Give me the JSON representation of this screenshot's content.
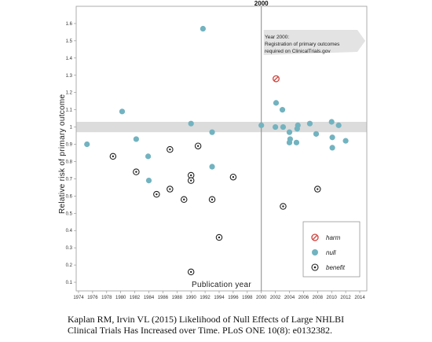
{
  "caption": {
    "line1": "Kaplan RM, Irvin VL (2015) Likelihood of Null Effects of Large NHLBI",
    "line2": "Clinical Trials Has Increased over Time. PLoS ONE 10(8): e0132382."
  },
  "colors": {
    "null": "#72b3c0",
    "harm": "#d0403a",
    "benefit": "#222222",
    "band": "#dcdcdc",
    "frame": "#999999"
  },
  "chart_data": {
    "type": "scatter",
    "xlabel": "Publication year",
    "ylabel": "Relative risk of primary outcome",
    "xlim": [
      1974,
      2014
    ],
    "ylim": [
      0.05,
      1.7
    ],
    "x_ticks": [
      1974,
      1976,
      1978,
      1980,
      1982,
      1984,
      1986,
      1988,
      1990,
      1992,
      1994,
      1996,
      1998,
      2000,
      2002,
      2004,
      2006,
      2008,
      2010,
      2012,
      2014
    ],
    "y_ticks": [
      "0.1",
      "0.2",
      "0.3",
      "0.4",
      "0.5",
      "0.6",
      "0.7",
      "0.8",
      "0.9",
      "1",
      "1.1",
      "1.2",
      "1.3",
      "1.4",
      "1.5",
      "1.6"
    ],
    "null_band": [
      0.97,
      1.03
    ],
    "reference_year": 2000,
    "reference_year_label": "2000",
    "annotation": {
      "line1": "Year 2000:",
      "line2": "Registration of primary outcomes",
      "line3": "required on ClinicalTrials.gov"
    },
    "legend": {
      "position": "bottom-right",
      "harm": "harm",
      "null": "null",
      "benefit": "benefit"
    },
    "series": [
      {
        "name": "harm",
        "points": [
          [
            2002.1,
            1.28
          ]
        ]
      },
      {
        "name": "null",
        "points": [
          [
            1975.2,
            0.9
          ],
          [
            1980.2,
            1.09
          ],
          [
            1982.2,
            0.93
          ],
          [
            1983.9,
            0.83
          ],
          [
            1984.0,
            0.69
          ],
          [
            1990.0,
            1.02
          ],
          [
            1991.7,
            1.57
          ],
          [
            1993.0,
            0.97
          ],
          [
            1993.0,
            0.77
          ],
          [
            2000.0,
            1.01
          ],
          [
            2002.0,
            1.0
          ],
          [
            2002.1,
            1.14
          ],
          [
            2003.0,
            1.1
          ],
          [
            2003.1,
            1.0
          ],
          [
            2004.0,
            0.97
          ],
          [
            2004.0,
            0.91
          ],
          [
            2004.1,
            0.93
          ],
          [
            2005.0,
            0.91
          ],
          [
            2005.1,
            0.99
          ],
          [
            2005.2,
            1.01
          ],
          [
            2006.9,
            1.02
          ],
          [
            2007.8,
            0.96
          ],
          [
            2010.0,
            1.03
          ],
          [
            2010.1,
            0.94
          ],
          [
            2010.1,
            0.88
          ],
          [
            2011.0,
            1.01
          ],
          [
            2012.0,
            0.92
          ]
        ]
      },
      {
        "name": "benefit",
        "points": [
          [
            1978.9,
            0.83
          ],
          [
            1982.2,
            0.74
          ],
          [
            1985.1,
            0.61
          ],
          [
            1987.0,
            0.87
          ],
          [
            1987.0,
            0.64
          ],
          [
            1989.0,
            0.58
          ],
          [
            1990.0,
            0.72
          ],
          [
            1990.0,
            0.69
          ],
          [
            1990.0,
            0.16
          ],
          [
            1991.0,
            0.89
          ],
          [
            1993.0,
            0.58
          ],
          [
            1994.0,
            0.36
          ],
          [
            1996.0,
            0.71
          ],
          [
            2003.1,
            0.54
          ],
          [
            2008.0,
            0.64
          ]
        ]
      }
    ]
  }
}
